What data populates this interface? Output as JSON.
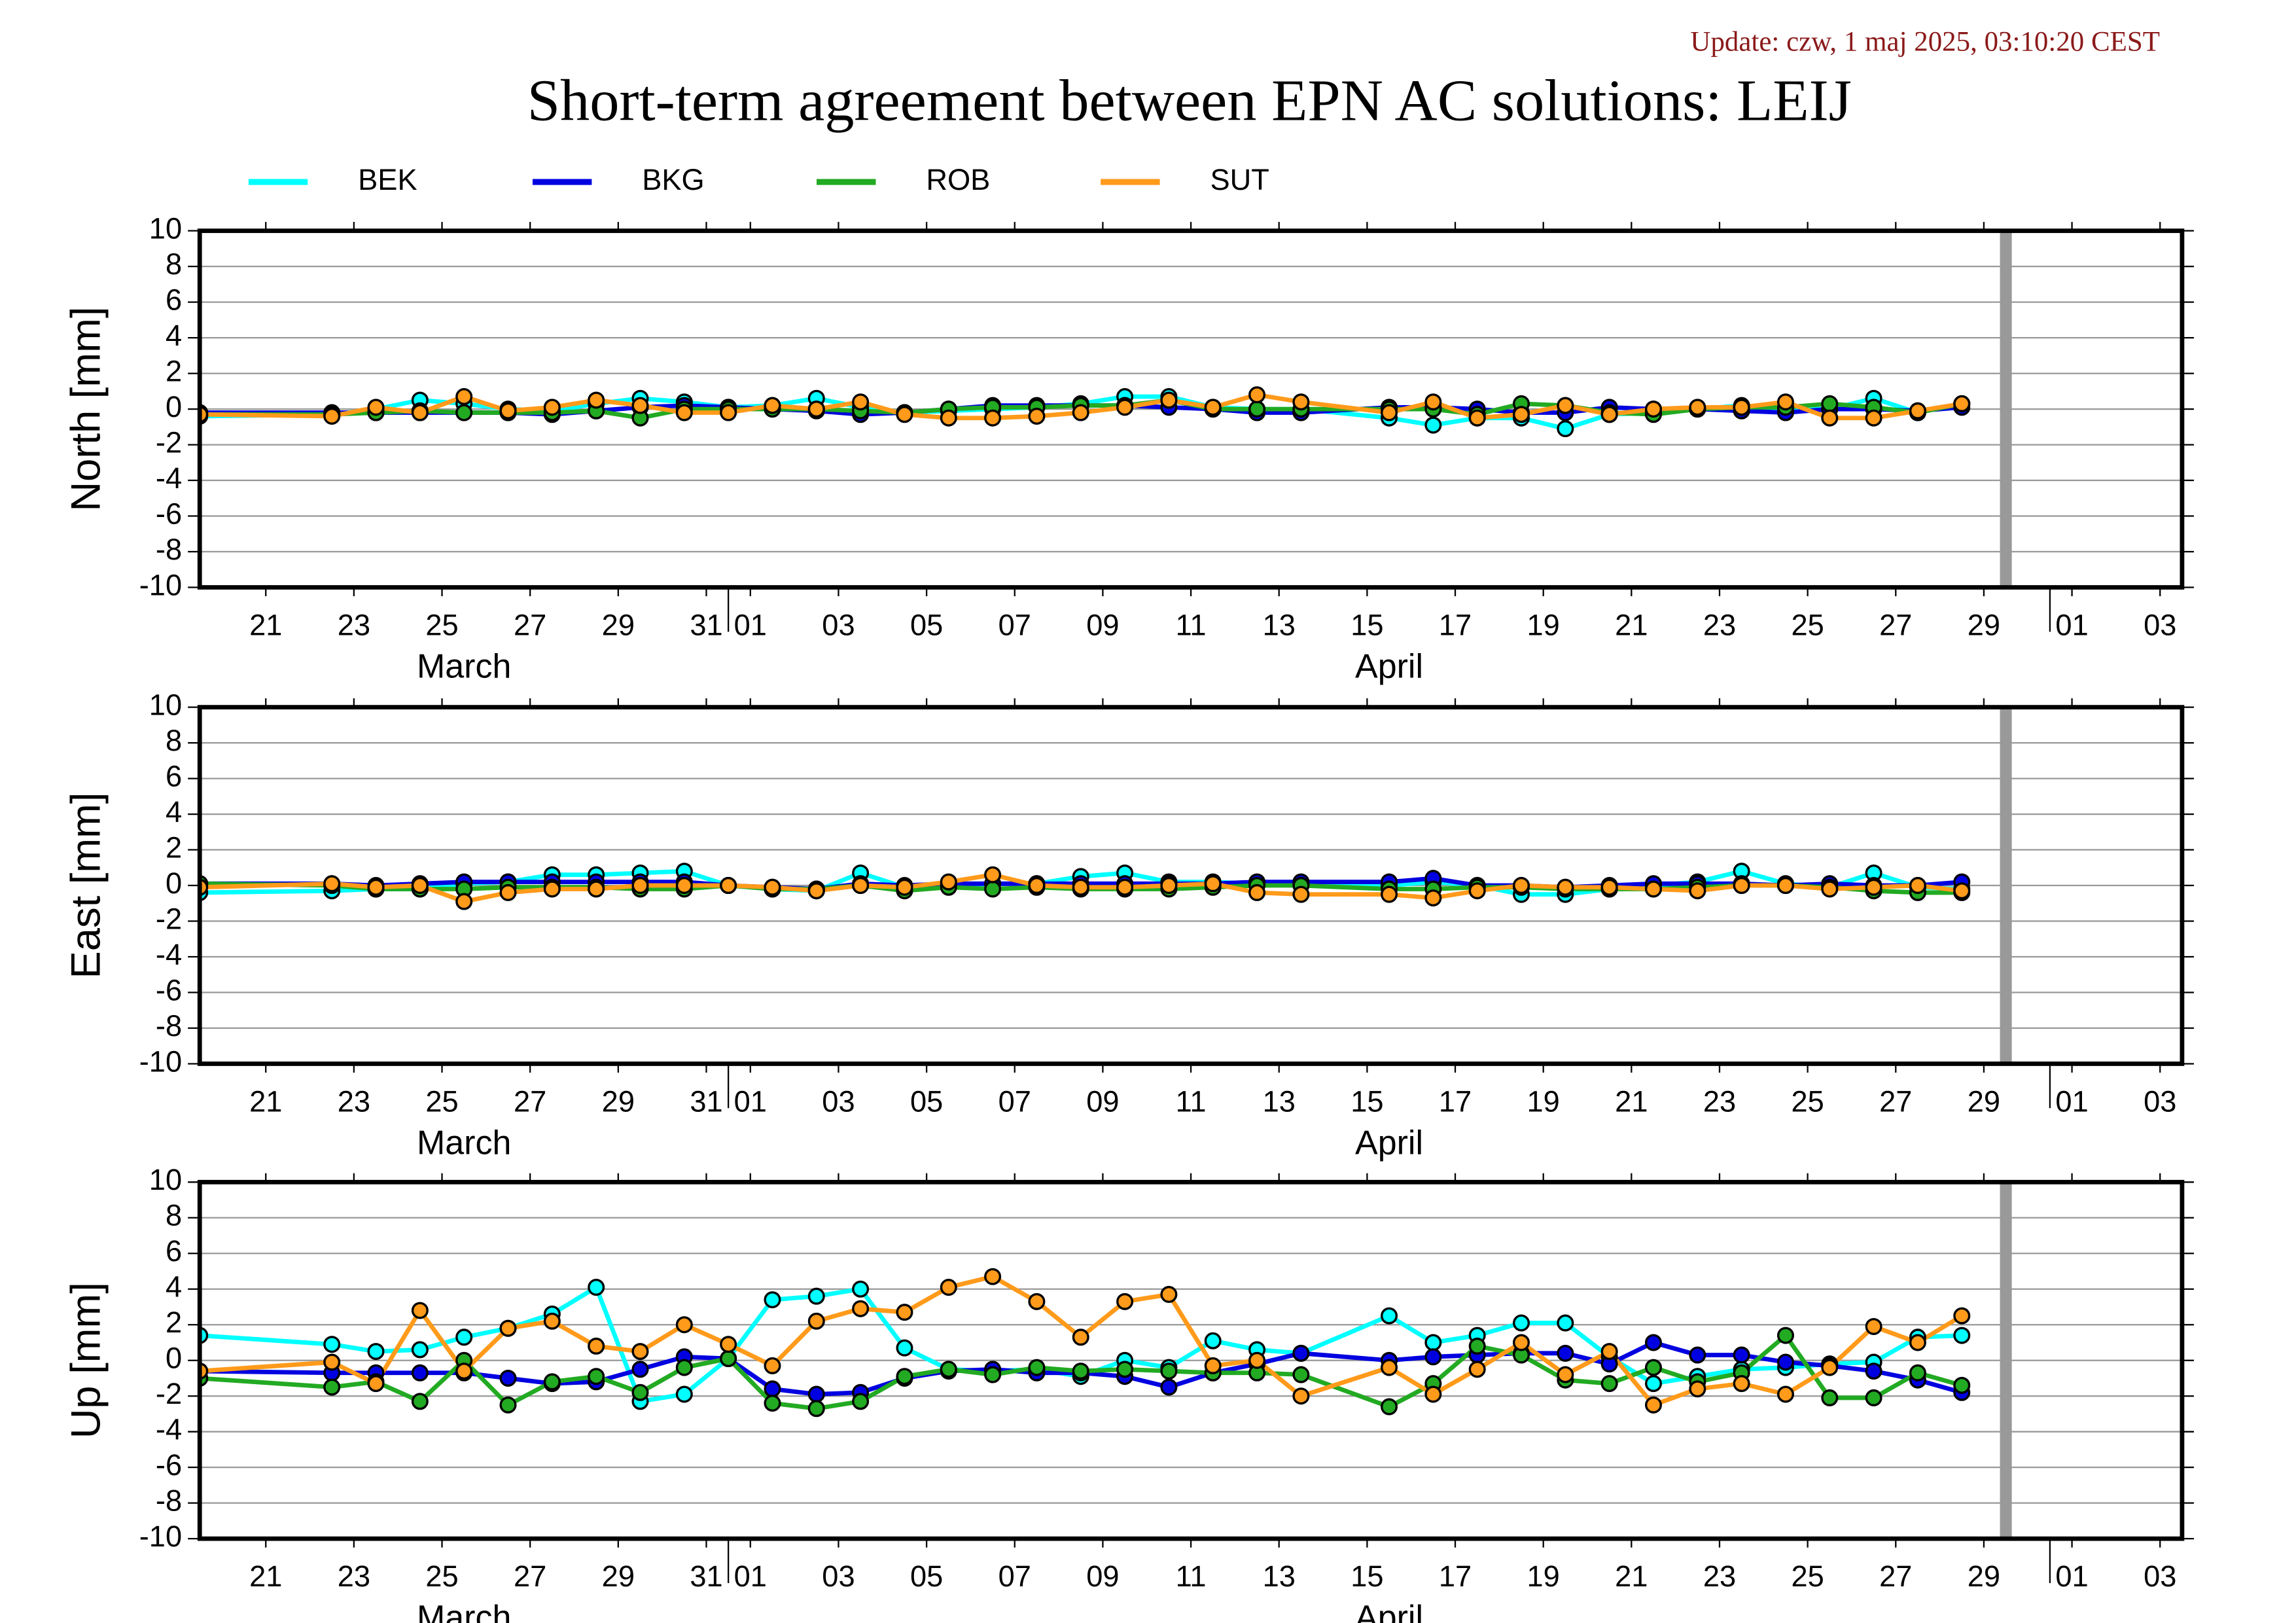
{
  "header": {
    "update": "Update: czw, 1 maj 2025, 03:10:20 CEST",
    "title": "Short-term agreement between EPN AC solutions: LEIJ"
  },
  "chart_data": [
    {
      "type": "line",
      "ylabel": "North [mm]",
      "x": [
        "03-20",
        "03-23",
        "03-24",
        "03-25",
        "03-26",
        "03-27",
        "03-28",
        "03-29",
        "03-30",
        "03-31",
        "04-01",
        "04-02",
        "04-03",
        "04-04",
        "04-05",
        "04-06",
        "04-07",
        "04-08",
        "04-09",
        "04-10",
        "04-11",
        "04-12",
        "04-13",
        "04-14",
        "04-16",
        "04-17",
        "04-18",
        "04-19",
        "04-20",
        "04-21",
        "04-22",
        "04-23",
        "04-24",
        "04-25",
        "04-26",
        "04-27",
        "04-28",
        "04-29"
      ],
      "series": [
        {
          "name": "BEK",
          "color": "#00ffff",
          "values": [
            -0.4,
            -0.3,
            0.0,
            0.5,
            0.3,
            0.0,
            -0.1,
            0.3,
            0.6,
            0.4,
            0.1,
            0.2,
            0.6,
            0.1,
            -0.2,
            -0.1,
            0.0,
            0.1,
            0.3,
            0.7,
            0.7,
            0.1,
            0.0,
            0.0,
            -0.5,
            -0.9,
            -0.5,
            -0.5,
            -1.1,
            -0.3,
            -0.2,
            0.0,
            0.2,
            0.0,
            0.0,
            0.6,
            -0.2,
            0.3
          ]
        },
        {
          "name": "BKG",
          "color": "#0000e0",
          "values": [
            -0.2,
            -0.2,
            -0.2,
            -0.2,
            -0.2,
            -0.2,
            -0.3,
            -0.1,
            0.1,
            0.2,
            0.1,
            0.0,
            -0.1,
            -0.3,
            -0.2,
            0.0,
            0.2,
            0.2,
            0.2,
            0.2,
            0.1,
            0.0,
            -0.2,
            -0.2,
            0.1,
            0.1,
            0.0,
            -0.2,
            -0.2,
            0.1,
            0.0,
            0.0,
            -0.1,
            -0.2,
            0.0,
            0.0,
            -0.1,
            0.1
          ]
        },
        {
          "name": "ROB",
          "color": "#22aa22",
          "values": [
            -0.3,
            -0.3,
            -0.2,
            -0.1,
            -0.2,
            -0.2,
            -0.2,
            -0.1,
            -0.5,
            0.0,
            0.0,
            0.0,
            0.0,
            -0.1,
            -0.2,
            0.0,
            0.1,
            0.1,
            0.2,
            0.2,
            0.5,
            0.0,
            0.0,
            0.0,
            0.0,
            0.0,
            -0.3,
            0.3,
            0.2,
            -0.2,
            -0.3,
            0.0,
            0.1,
            0.1,
            0.3,
            0.1,
            -0.2,
            0.3
          ]
        },
        {
          "name": "SUT",
          "color": "#ff9a1a",
          "values": [
            -0.3,
            -0.4,
            0.1,
            -0.2,
            0.7,
            -0.1,
            0.1,
            0.5,
            0.2,
            -0.2,
            -0.2,
            0.2,
            0.0,
            0.4,
            -0.3,
            -0.5,
            -0.5,
            -0.4,
            -0.2,
            0.1,
            0.5,
            0.1,
            0.8,
            0.4,
            -0.2,
            0.4,
            -0.5,
            -0.3,
            0.2,
            -0.3,
            0.0,
            0.1,
            0.1,
            0.4,
            -0.5,
            -0.5,
            -0.1,
            0.3
          ]
        }
      ],
      "xlim": [
        "03-20",
        "05-04"
      ],
      "ylim": [
        -10,
        10
      ],
      "yticks": [
        -10,
        -8,
        -6,
        -4,
        -2,
        0,
        2,
        4,
        6,
        8,
        10
      ],
      "xticks": [
        {
          "value": "03-21",
          "label": "21"
        },
        {
          "value": "03-23",
          "label": "23"
        },
        {
          "value": "03-25",
          "label": "25"
        },
        {
          "value": "03-27",
          "label": "27"
        },
        {
          "value": "03-29",
          "label": "29"
        },
        {
          "value": "03-31",
          "label": "31"
        },
        {
          "value": "04-01",
          "label": "01"
        },
        {
          "value": "04-03",
          "label": "03"
        },
        {
          "value": "04-05",
          "label": "05"
        },
        {
          "value": "04-07",
          "label": "07"
        },
        {
          "value": "04-09",
          "label": "09"
        },
        {
          "value": "04-11",
          "label": "11"
        },
        {
          "value": "04-13",
          "label": "13"
        },
        {
          "value": "04-15",
          "label": "15"
        },
        {
          "value": "04-17",
          "label": "17"
        },
        {
          "value": "04-19",
          "label": "19"
        },
        {
          "value": "04-21",
          "label": "21"
        },
        {
          "value": "04-23",
          "label": "23"
        },
        {
          "value": "04-25",
          "label": "25"
        },
        {
          "value": "04-27",
          "label": "27"
        },
        {
          "value": "04-29",
          "label": "29"
        },
        {
          "value": "05-01",
          "label": "01"
        },
        {
          "value": "05-03",
          "label": "03"
        }
      ],
      "month_labels": [
        {
          "value": "03-26",
          "label": "March"
        },
        {
          "value": "04-16",
          "label": "April"
        }
      ],
      "current_date": "04-30",
      "grid": true
    },
    {
      "type": "line",
      "ylabel": "East [mm]",
      "x": [
        "03-20",
        "03-23",
        "03-24",
        "03-25",
        "03-26",
        "03-27",
        "03-28",
        "03-29",
        "03-30",
        "03-31",
        "04-01",
        "04-02",
        "04-03",
        "04-04",
        "04-05",
        "04-06",
        "04-07",
        "04-08",
        "04-09",
        "04-10",
        "04-11",
        "04-12",
        "04-13",
        "04-14",
        "04-16",
        "04-17",
        "04-18",
        "04-19",
        "04-20",
        "04-21",
        "04-22",
        "04-23",
        "04-24",
        "04-25",
        "04-26",
        "04-27",
        "04-28",
        "04-29"
      ],
      "series": [
        {
          "name": "BEK",
          "color": "#00ffff",
          "values": [
            -0.4,
            -0.3,
            -0.2,
            -0.2,
            0.1,
            0.2,
            0.6,
            0.6,
            0.7,
            0.8,
            0.0,
            -0.2,
            -0.3,
            0.7,
            -0.1,
            0.0,
            0.1,
            0.1,
            0.5,
            0.7,
            0.2,
            0.2,
            0.1,
            0.1,
            0.0,
            0.2,
            0.0,
            -0.5,
            -0.5,
            -0.2,
            0.0,
            0.2,
            0.8,
            0.1,
            -0.1,
            0.7,
            -0.1,
            -0.2
          ]
        },
        {
          "name": "BKG",
          "color": "#0000e0",
          "values": [
            0.1,
            0.1,
            0.0,
            0.1,
            0.2,
            0.2,
            0.2,
            0.2,
            0.2,
            0.2,
            0.0,
            -0.1,
            -0.2,
            0.1,
            0.0,
            0.1,
            0.1,
            0.1,
            0.1,
            0.1,
            0.1,
            0.1,
            0.2,
            0.2,
            0.2,
            0.4,
            0.0,
            0.0,
            -0.1,
            0.0,
            0.1,
            0.1,
            0.1,
            0.0,
            0.1,
            0.0,
            0.0,
            0.2
          ]
        },
        {
          "name": "ROB",
          "color": "#22aa22",
          "values": [
            0.1,
            0.0,
            -0.2,
            -0.2,
            -0.2,
            -0.1,
            -0.1,
            -0.1,
            -0.2,
            -0.2,
            0.0,
            -0.2,
            -0.2,
            0.0,
            -0.3,
            -0.1,
            -0.2,
            -0.1,
            -0.2,
            -0.2,
            -0.2,
            -0.1,
            0.0,
            0.0,
            -0.2,
            -0.2,
            -0.1,
            -0.1,
            -0.2,
            -0.2,
            -0.2,
            -0.1,
            0.0,
            0.0,
            -0.1,
            -0.3,
            -0.4,
            -0.4
          ]
        },
        {
          "name": "SUT",
          "color": "#ff9a1a",
          "values": [
            -0.1,
            0.1,
            -0.1,
            0.0,
            -0.9,
            -0.4,
            -0.2,
            -0.2,
            0.0,
            0.0,
            0.0,
            -0.1,
            -0.3,
            0.0,
            -0.1,
            0.2,
            0.6,
            0.0,
            -0.1,
            -0.1,
            0.0,
            0.1,
            -0.4,
            -0.5,
            -0.5,
            -0.7,
            -0.3,
            0.0,
            -0.1,
            -0.1,
            -0.2,
            -0.3,
            0.0,
            0.0,
            -0.2,
            -0.1,
            0.0,
            -0.3
          ]
        }
      ],
      "xlim": [
        "03-20",
        "05-04"
      ],
      "ylim": [
        -10,
        10
      ],
      "yticks": [
        -10,
        -8,
        -6,
        -4,
        -2,
        0,
        2,
        4,
        6,
        8,
        10
      ],
      "xticks": [
        {
          "value": "03-21",
          "label": "21"
        },
        {
          "value": "03-23",
          "label": "23"
        },
        {
          "value": "03-25",
          "label": "25"
        },
        {
          "value": "03-27",
          "label": "27"
        },
        {
          "value": "03-29",
          "label": "29"
        },
        {
          "value": "03-31",
          "label": "31"
        },
        {
          "value": "04-01",
          "label": "01"
        },
        {
          "value": "04-03",
          "label": "03"
        },
        {
          "value": "04-05",
          "label": "05"
        },
        {
          "value": "04-07",
          "label": "07"
        },
        {
          "value": "04-09",
          "label": "09"
        },
        {
          "value": "04-11",
          "label": "11"
        },
        {
          "value": "04-13",
          "label": "13"
        },
        {
          "value": "04-15",
          "label": "15"
        },
        {
          "value": "04-17",
          "label": "17"
        },
        {
          "value": "04-19",
          "label": "19"
        },
        {
          "value": "04-21",
          "label": "21"
        },
        {
          "value": "04-23",
          "label": "23"
        },
        {
          "value": "04-25",
          "label": "25"
        },
        {
          "value": "04-27",
          "label": "27"
        },
        {
          "value": "04-29",
          "label": "29"
        },
        {
          "value": "05-01",
          "label": "01"
        },
        {
          "value": "05-03",
          "label": "03"
        }
      ],
      "month_labels": [
        {
          "value": "03-26",
          "label": "March"
        },
        {
          "value": "04-16",
          "label": "April"
        }
      ],
      "current_date": "04-30",
      "grid": true
    },
    {
      "type": "line",
      "ylabel": "Up [mm]",
      "x": [
        "03-20",
        "03-23",
        "03-24",
        "03-25",
        "03-26",
        "03-27",
        "03-28",
        "03-29",
        "03-30",
        "03-31",
        "04-01",
        "04-02",
        "04-03",
        "04-04",
        "04-05",
        "04-06",
        "04-07",
        "04-08",
        "04-09",
        "04-10",
        "04-11",
        "04-12",
        "04-13",
        "04-14",
        "04-16",
        "04-17",
        "04-18",
        "04-19",
        "04-20",
        "04-21",
        "04-22",
        "04-23",
        "04-24",
        "04-25",
        "04-26",
        "04-27",
        "04-28",
        "04-29"
      ],
      "series": [
        {
          "name": "BEK",
          "color": "#00ffff",
          "values": [
            1.4,
            0.9,
            0.5,
            0.6,
            1.3,
            1.8,
            2.6,
            4.1,
            -2.3,
            -1.9,
            0.1,
            3.4,
            3.6,
            4.0,
            0.7,
            -0.5,
            -0.6,
            -0.5,
            -0.9,
            0.0,
            -0.4,
            1.1,
            0.6,
            0.4,
            2.5,
            1.0,
            1.4,
            2.1,
            2.1,
            0.2,
            -1.3,
            -0.9,
            -0.5,
            -0.4,
            -0.2,
            -0.1,
            1.3,
            1.4
          ]
        },
        {
          "name": "BKG",
          "color": "#0000e0",
          "values": [
            -0.6,
            -0.7,
            -0.7,
            -0.7,
            -0.7,
            -1.0,
            -1.3,
            -1.2,
            -0.5,
            0.2,
            0.1,
            -1.6,
            -1.9,
            -1.8,
            -1.0,
            -0.6,
            -0.5,
            -0.7,
            -0.7,
            -0.9,
            -1.5,
            -0.7,
            -0.2,
            0.4,
            0.0,
            0.2,
            0.3,
            0.4,
            0.4,
            -0.2,
            1.0,
            0.3,
            0.3,
            -0.1,
            -0.3,
            -0.6,
            -1.1,
            -1.8
          ]
        },
        {
          "name": "ROB",
          "color": "#22aa22",
          "values": [
            -1.0,
            -1.5,
            -1.2,
            -2.3,
            0.0,
            -2.5,
            -1.2,
            -0.9,
            -1.8,
            -0.4,
            0.1,
            -2.4,
            -2.7,
            -2.3,
            -0.9,
            -0.5,
            -0.8,
            -0.4,
            -0.6,
            -0.5,
            -0.6,
            -0.7,
            -0.7,
            -0.8,
            -2.6,
            -1.3,
            0.8,
            0.3,
            -1.1,
            -1.3,
            -0.4,
            -1.2,
            -0.7,
            1.4,
            -2.1,
            -2.1,
            -0.7,
            -1.4
          ]
        },
        {
          "name": "SUT",
          "color": "#ff9a1a",
          "values": [
            -0.6,
            -0.1,
            -1.3,
            2.8,
            -0.6,
            1.8,
            2.2,
            0.8,
            0.5,
            2.0,
            0.9,
            -0.3,
            2.2,
            2.9,
            2.7,
            4.1,
            4.7,
            3.3,
            1.3,
            3.3,
            3.7,
            -0.3,
            0.0,
            -2.0,
            -0.4,
            -1.9,
            -0.5,
            1.0,
            -0.8,
            0.5,
            -2.5,
            -1.6,
            -1.3,
            -1.9,
            -0.4,
            1.9,
            1.0,
            2.5
          ]
        }
      ],
      "xlim": [
        "03-20",
        "05-04"
      ],
      "ylim": [
        -10,
        10
      ],
      "yticks": [
        -10,
        -8,
        -6,
        -4,
        -2,
        0,
        2,
        4,
        6,
        8,
        10
      ],
      "xticks": [
        {
          "value": "03-21",
          "label": "21"
        },
        {
          "value": "03-23",
          "label": "23"
        },
        {
          "value": "03-25",
          "label": "25"
        },
        {
          "value": "03-27",
          "label": "27"
        },
        {
          "value": "03-29",
          "label": "29"
        },
        {
          "value": "03-31",
          "label": "31"
        },
        {
          "value": "04-01",
          "label": "01"
        },
        {
          "value": "04-03",
          "label": "03"
        },
        {
          "value": "04-05",
          "label": "05"
        },
        {
          "value": "04-07",
          "label": "07"
        },
        {
          "value": "04-09",
          "label": "09"
        },
        {
          "value": "04-11",
          "label": "11"
        },
        {
          "value": "04-13",
          "label": "13"
        },
        {
          "value": "04-15",
          "label": "15"
        },
        {
          "value": "04-17",
          "label": "17"
        },
        {
          "value": "04-19",
          "label": "19"
        },
        {
          "value": "04-21",
          "label": "21"
        },
        {
          "value": "04-23",
          "label": "23"
        },
        {
          "value": "04-25",
          "label": "25"
        },
        {
          "value": "04-27",
          "label": "27"
        },
        {
          "value": "04-29",
          "label": "29"
        },
        {
          "value": "05-01",
          "label": "01"
        },
        {
          "value": "05-03",
          "label": "03"
        }
      ],
      "month_labels": [
        {
          "value": "03-26",
          "label": "March"
        },
        {
          "value": "04-16",
          "label": "April"
        }
      ],
      "current_date": "04-30",
      "grid": true
    }
  ]
}
